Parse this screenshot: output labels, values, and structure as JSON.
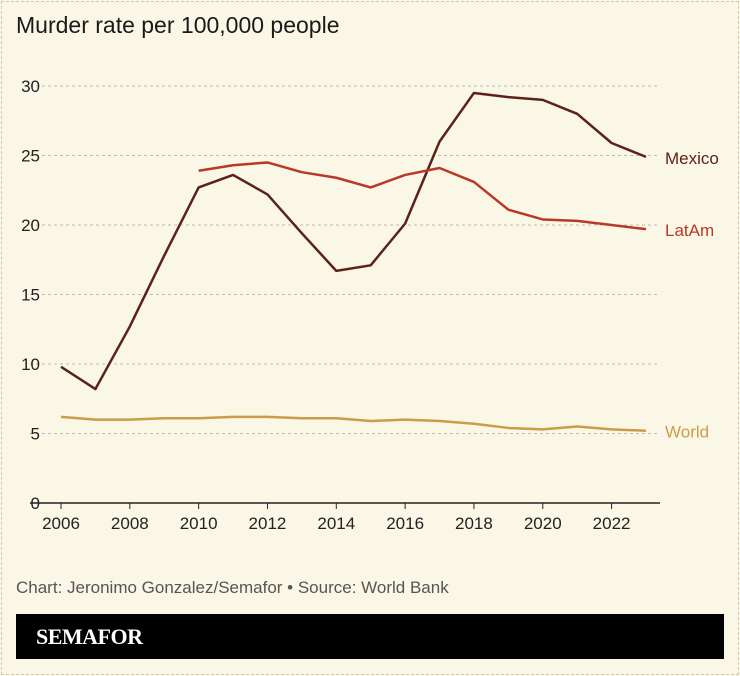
{
  "chart_data": {
    "type": "line",
    "title": "Murder rate per 100,000 people",
    "xlabel": "",
    "ylabel": "",
    "ylim": [
      0,
      30
    ],
    "xlim": [
      2006,
      2023
    ],
    "yticks": [
      0,
      5,
      10,
      15,
      20,
      25,
      30
    ],
    "xticks": [
      2006,
      2008,
      2010,
      2012,
      2014,
      2016,
      2018,
      2020,
      2022
    ],
    "grid": "horizontal dashed",
    "legend": "inline labels at line ends (right)",
    "x": [
      2006,
      2007,
      2008,
      2009,
      2010,
      2011,
      2012,
      2013,
      2014,
      2015,
      2016,
      2017,
      2018,
      2019,
      2020,
      2021,
      2022,
      2023
    ],
    "series": [
      {
        "name": "Mexico",
        "color": "#5b2219",
        "values": [
          9.8,
          8.2,
          12.7,
          17.8,
          22.7,
          23.6,
          22.2,
          19.4,
          16.7,
          17.1,
          20.1,
          26.0,
          29.5,
          29.2,
          29.0,
          28.0,
          25.9,
          24.9
        ]
      },
      {
        "name": "LatAm",
        "color": "#b8392a",
        "values": [
          null,
          null,
          null,
          null,
          23.9,
          24.3,
          24.5,
          23.8,
          23.4,
          22.7,
          23.6,
          24.1,
          23.1,
          21.1,
          20.4,
          20.3,
          20.0,
          19.7
        ]
      },
      {
        "name": "World",
        "color": "#c99d4c",
        "values": [
          6.2,
          6.0,
          6.0,
          6.1,
          6.1,
          6.2,
          6.2,
          6.1,
          6.1,
          5.9,
          6.0,
          5.9,
          5.7,
          5.4,
          5.3,
          5.5,
          5.3,
          5.2
        ]
      }
    ]
  },
  "footer": {
    "credit": "Chart: Jeronimo Gonzalez/Semafor • Source: World Bank",
    "logo": "SEMAFOR"
  }
}
